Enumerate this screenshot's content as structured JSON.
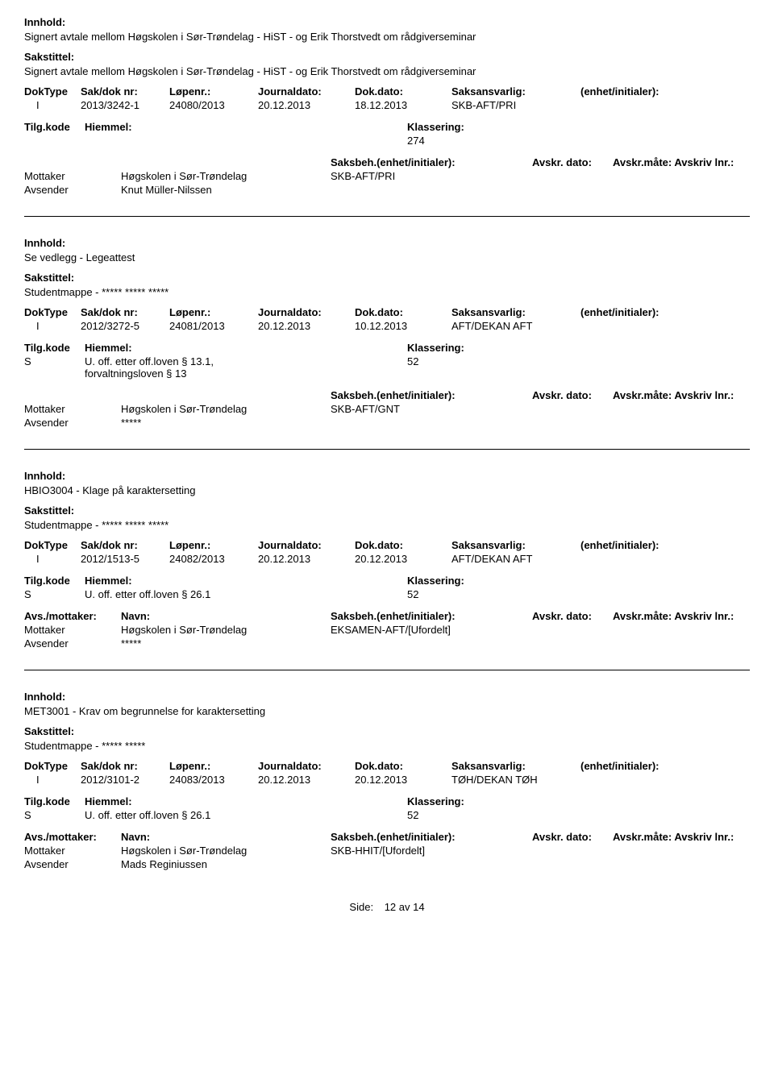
{
  "labels": {
    "innhold": "Innhold:",
    "sakstittel": "Sakstittel:",
    "doktype": "DokType",
    "sakdoknr": "Sak/dok nr:",
    "lopenr": "Løpenr.:",
    "journaldato": "Journaldato:",
    "dokdato": "Dok.dato:",
    "saksansvarlig": "Saksansvarlig:",
    "enhet": "(enhet/initialer):",
    "tilgkode": "Tilg.kode",
    "hiemmel": "Hiemmel:",
    "klassering": "Klassering:",
    "avsmottaker": "Avs./mottaker:",
    "navn": "Navn:",
    "saksbeh": "Saksbeh.(enhet/initialer):",
    "avskrdato": "Avskr. dato:",
    "avskrmate": "Avskr.måte:",
    "avskrivlnr": "Avskriv lnr.:",
    "mottaker": "Mottaker",
    "avsender": "Avsender",
    "side": "Side:",
    "av": "av"
  },
  "records": [
    {
      "innhold": "Signert avtale mellom Høgskolen i Sør-Trøndelag - HiST - og Erik Thorstvedt om rådgiverseminar",
      "sakstittel": "Signert avtale mellom Høgskolen i Sør-Trøndelag - HiST - og Erik Thorstvedt om rådgiverseminar",
      "doktype": "I",
      "sakdoknr": "2013/3242-1",
      "lopenr": "24080/2013",
      "journaldato": "20.12.2013",
      "dokdato": "18.12.2013",
      "saksansvarlig": "SKB-AFT/PRI",
      "tilgkode": "",
      "hiemmel": "",
      "klassering": "274",
      "mottaker_navn": "Høgskolen i Sør-Trøndelag",
      "saksbeh": "SKB-AFT/PRI",
      "avsender_navn": "Knut Müller-Nilssen",
      "show_mottaker_header": false
    },
    {
      "innhold": "Se vedlegg - Legeattest",
      "sakstittel": "Studentmappe - ***** ***** *****",
      "doktype": "I",
      "sakdoknr": "2012/3272-5",
      "lopenr": "24081/2013",
      "journaldato": "20.12.2013",
      "dokdato": "10.12.2013",
      "saksansvarlig": "AFT/DEKAN AFT",
      "tilgkode": "S",
      "hiemmel": "U. off. etter off.loven § 13.1, forvaltningsloven § 13",
      "klassering": "52",
      "mottaker_navn": "Høgskolen i Sør-Trøndelag",
      "saksbeh": "SKB-AFT/GNT",
      "avsender_navn": "*****",
      "show_mottaker_header": false
    },
    {
      "innhold": "HBIO3004 - Klage på karaktersetting",
      "sakstittel": "Studentmappe - ***** ***** *****",
      "doktype": "I",
      "sakdoknr": "2012/1513-5",
      "lopenr": "24082/2013",
      "journaldato": "20.12.2013",
      "dokdato": "20.12.2013",
      "saksansvarlig": "AFT/DEKAN AFT",
      "tilgkode": "S",
      "hiemmel": "U. off. etter off.loven § 26.1",
      "klassering": "52",
      "mottaker_navn": "Høgskolen i Sør-Trøndelag",
      "saksbeh": "EKSAMEN-AFT/[Ufordelt]",
      "avsender_navn": "*****",
      "show_mottaker_header": true
    },
    {
      "innhold": "MET3001 - Krav om begrunnelse for karaktersetting",
      "sakstittel": "Studentmappe - ***** *****",
      "doktype": "I",
      "sakdoknr": "2012/3101-2",
      "lopenr": "24083/2013",
      "journaldato": "20.12.2013",
      "dokdato": "20.12.2013",
      "saksansvarlig": "TØH/DEKAN TØH",
      "tilgkode": "S",
      "hiemmel": "U. off. etter off.loven § 26.1",
      "klassering": "52",
      "mottaker_navn": "Høgskolen i Sør-Trøndelag",
      "saksbeh": "SKB-HHIT/[Ufordelt]",
      "avsender_navn": "Mads Reginiussen",
      "show_mottaker_header": true
    }
  ],
  "footer": {
    "page": "12",
    "total": "14"
  }
}
